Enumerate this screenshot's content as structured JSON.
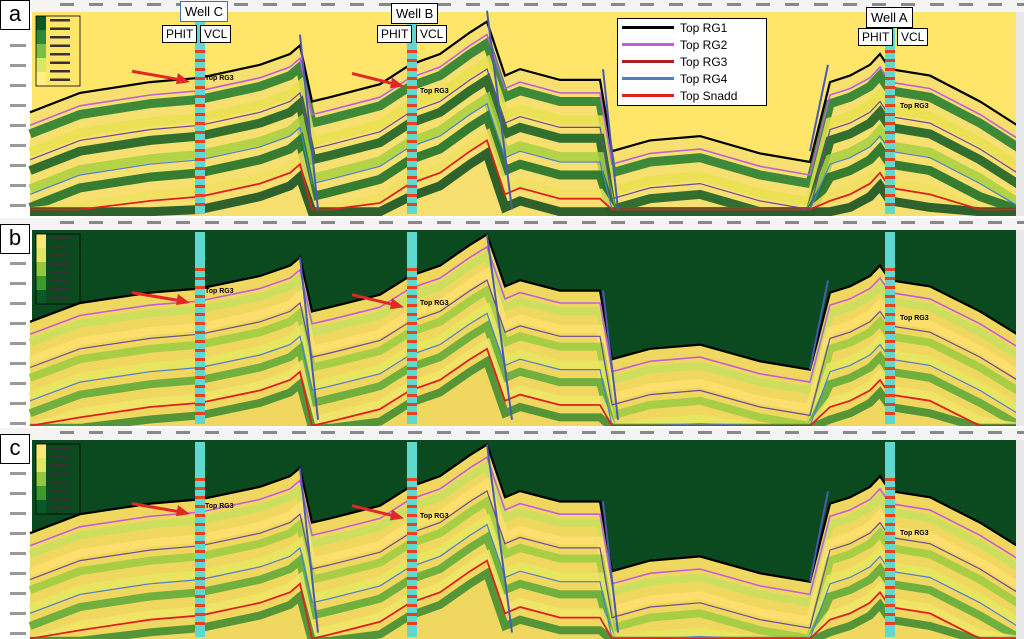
{
  "panels": [
    {
      "id": "a",
      "label": "a",
      "background": "#ffe66a"
    },
    {
      "id": "b",
      "label": "b",
      "background": "#0b4a1e"
    },
    {
      "id": "c",
      "label": "c",
      "background": "#0b4a1e"
    }
  ],
  "wells": {
    "c": {
      "name": "Well C",
      "phit": "PHIT",
      "vcl": "VCL"
    },
    "b": {
      "name": "Well B",
      "phit": "PHIT",
      "vcl": "VCL"
    },
    "a": {
      "name": "Well A",
      "phit": "PHIT",
      "vcl": "VCL"
    }
  },
  "legend": [
    {
      "label": "Top RG1",
      "color": "#000000"
    },
    {
      "label": "Top RG2",
      "color": "#c060d8"
    },
    {
      "label": "Top RG3",
      "color": "#b02020"
    },
    {
      "label": "Top RG4",
      "color": "#4a7fd0"
    },
    {
      "label": "Top Snadd",
      "color": "#e02020"
    }
  ],
  "horizon_labels": {
    "rg3_mark": "Top RG3"
  },
  "colors": {
    "arrow": "#e02828",
    "well_log": "#5fd8d0",
    "panel_a_bg": "#ffe66a",
    "panel_bc_bg": "#0b4a1e"
  },
  "icons": [
    "colorbar-icon",
    "arrow-icon",
    "well-log-icon"
  ]
}
